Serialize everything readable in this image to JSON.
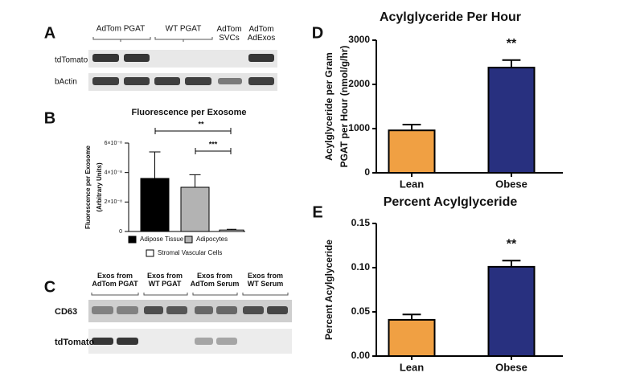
{
  "panels": [
    "A",
    "B",
    "C",
    "D",
    "E"
  ],
  "blot_a": {
    "columns": [
      "AdTom PGAT",
      "WT PGAT",
      "AdTom SVCs",
      "AdTom AdExos"
    ],
    "rows": [
      "tdTomato",
      "bActin"
    ]
  },
  "blot_c": {
    "columns": [
      "Exos from AdTom PGAT",
      "Exos from WT PGAT",
      "Exos from AdTom Serum",
      "Exos from WT Serum"
    ],
    "rows": [
      "CD63",
      "tdTomato"
    ]
  },
  "chart_data": [
    {
      "type": "bar",
      "title": "Fluorescence per Exosome",
      "ylabel": [
        "Fluorescence per Exosome",
        "(Arbitrary Units)"
      ],
      "ylim": [
        0,
        6e-08
      ],
      "yticks": [
        0,
        {
          "value": 2e-08,
          "label": "2×10⁻⁸"
        },
        {
          "value": 4e-08,
          "label": "4×10⁻⁸"
        },
        {
          "value": 6e-08,
          "label": "6×10⁻⁸"
        }
      ],
      "series": [
        {
          "name": "Adipose Tissue",
          "color": "#000000",
          "values": [
            3.6e-08
          ],
          "errors": [
            1.8e-08
          ]
        },
        {
          "name": "Adipocytes",
          "color": "#b3b3b3",
          "values": [
            3e-08
          ],
          "errors": [
            8.5e-09
          ]
        },
        {
          "name": "Stromal Vascular Cells",
          "color": "#ffffff",
          "values": [
            1e-09
          ],
          "errors": [
            5e-10
          ]
        }
      ],
      "annotations": [
        "**",
        "***"
      ]
    },
    {
      "type": "bar",
      "title": "Acylglyceride Per Hour",
      "ylabel": [
        "Acylglyceride per Gram",
        "PGAT per Hour (nmol/g/hr)"
      ],
      "categories": [
        "Lean",
        "Obese"
      ],
      "values": [
        960,
        2380
      ],
      "errors": [
        130,
        170
      ],
      "colors": [
        "#f0a043",
        "#28307f"
      ],
      "ylim": [
        0,
        3000
      ],
      "yticks": [
        0,
        1000,
        2000,
        3000
      ],
      "annotations": [
        "**"
      ]
    },
    {
      "type": "bar",
      "title": "Percent Acylglyceride",
      "ylabel": [
        "Percent Acylglyceride"
      ],
      "categories": [
        "Lean",
        "Obese"
      ],
      "values": [
        0.041,
        0.101
      ],
      "errors": [
        0.006,
        0.007
      ],
      "colors": [
        "#f0a043",
        "#28307f"
      ],
      "ylim": [
        0,
        0.15
      ],
      "yticks": [
        {
          "value": 0,
          "label": "0.00"
        },
        0.05,
        {
          "value": 0.1,
          "label": "0.10"
        },
        0.15
      ],
      "annotations": [
        "**"
      ]
    }
  ]
}
